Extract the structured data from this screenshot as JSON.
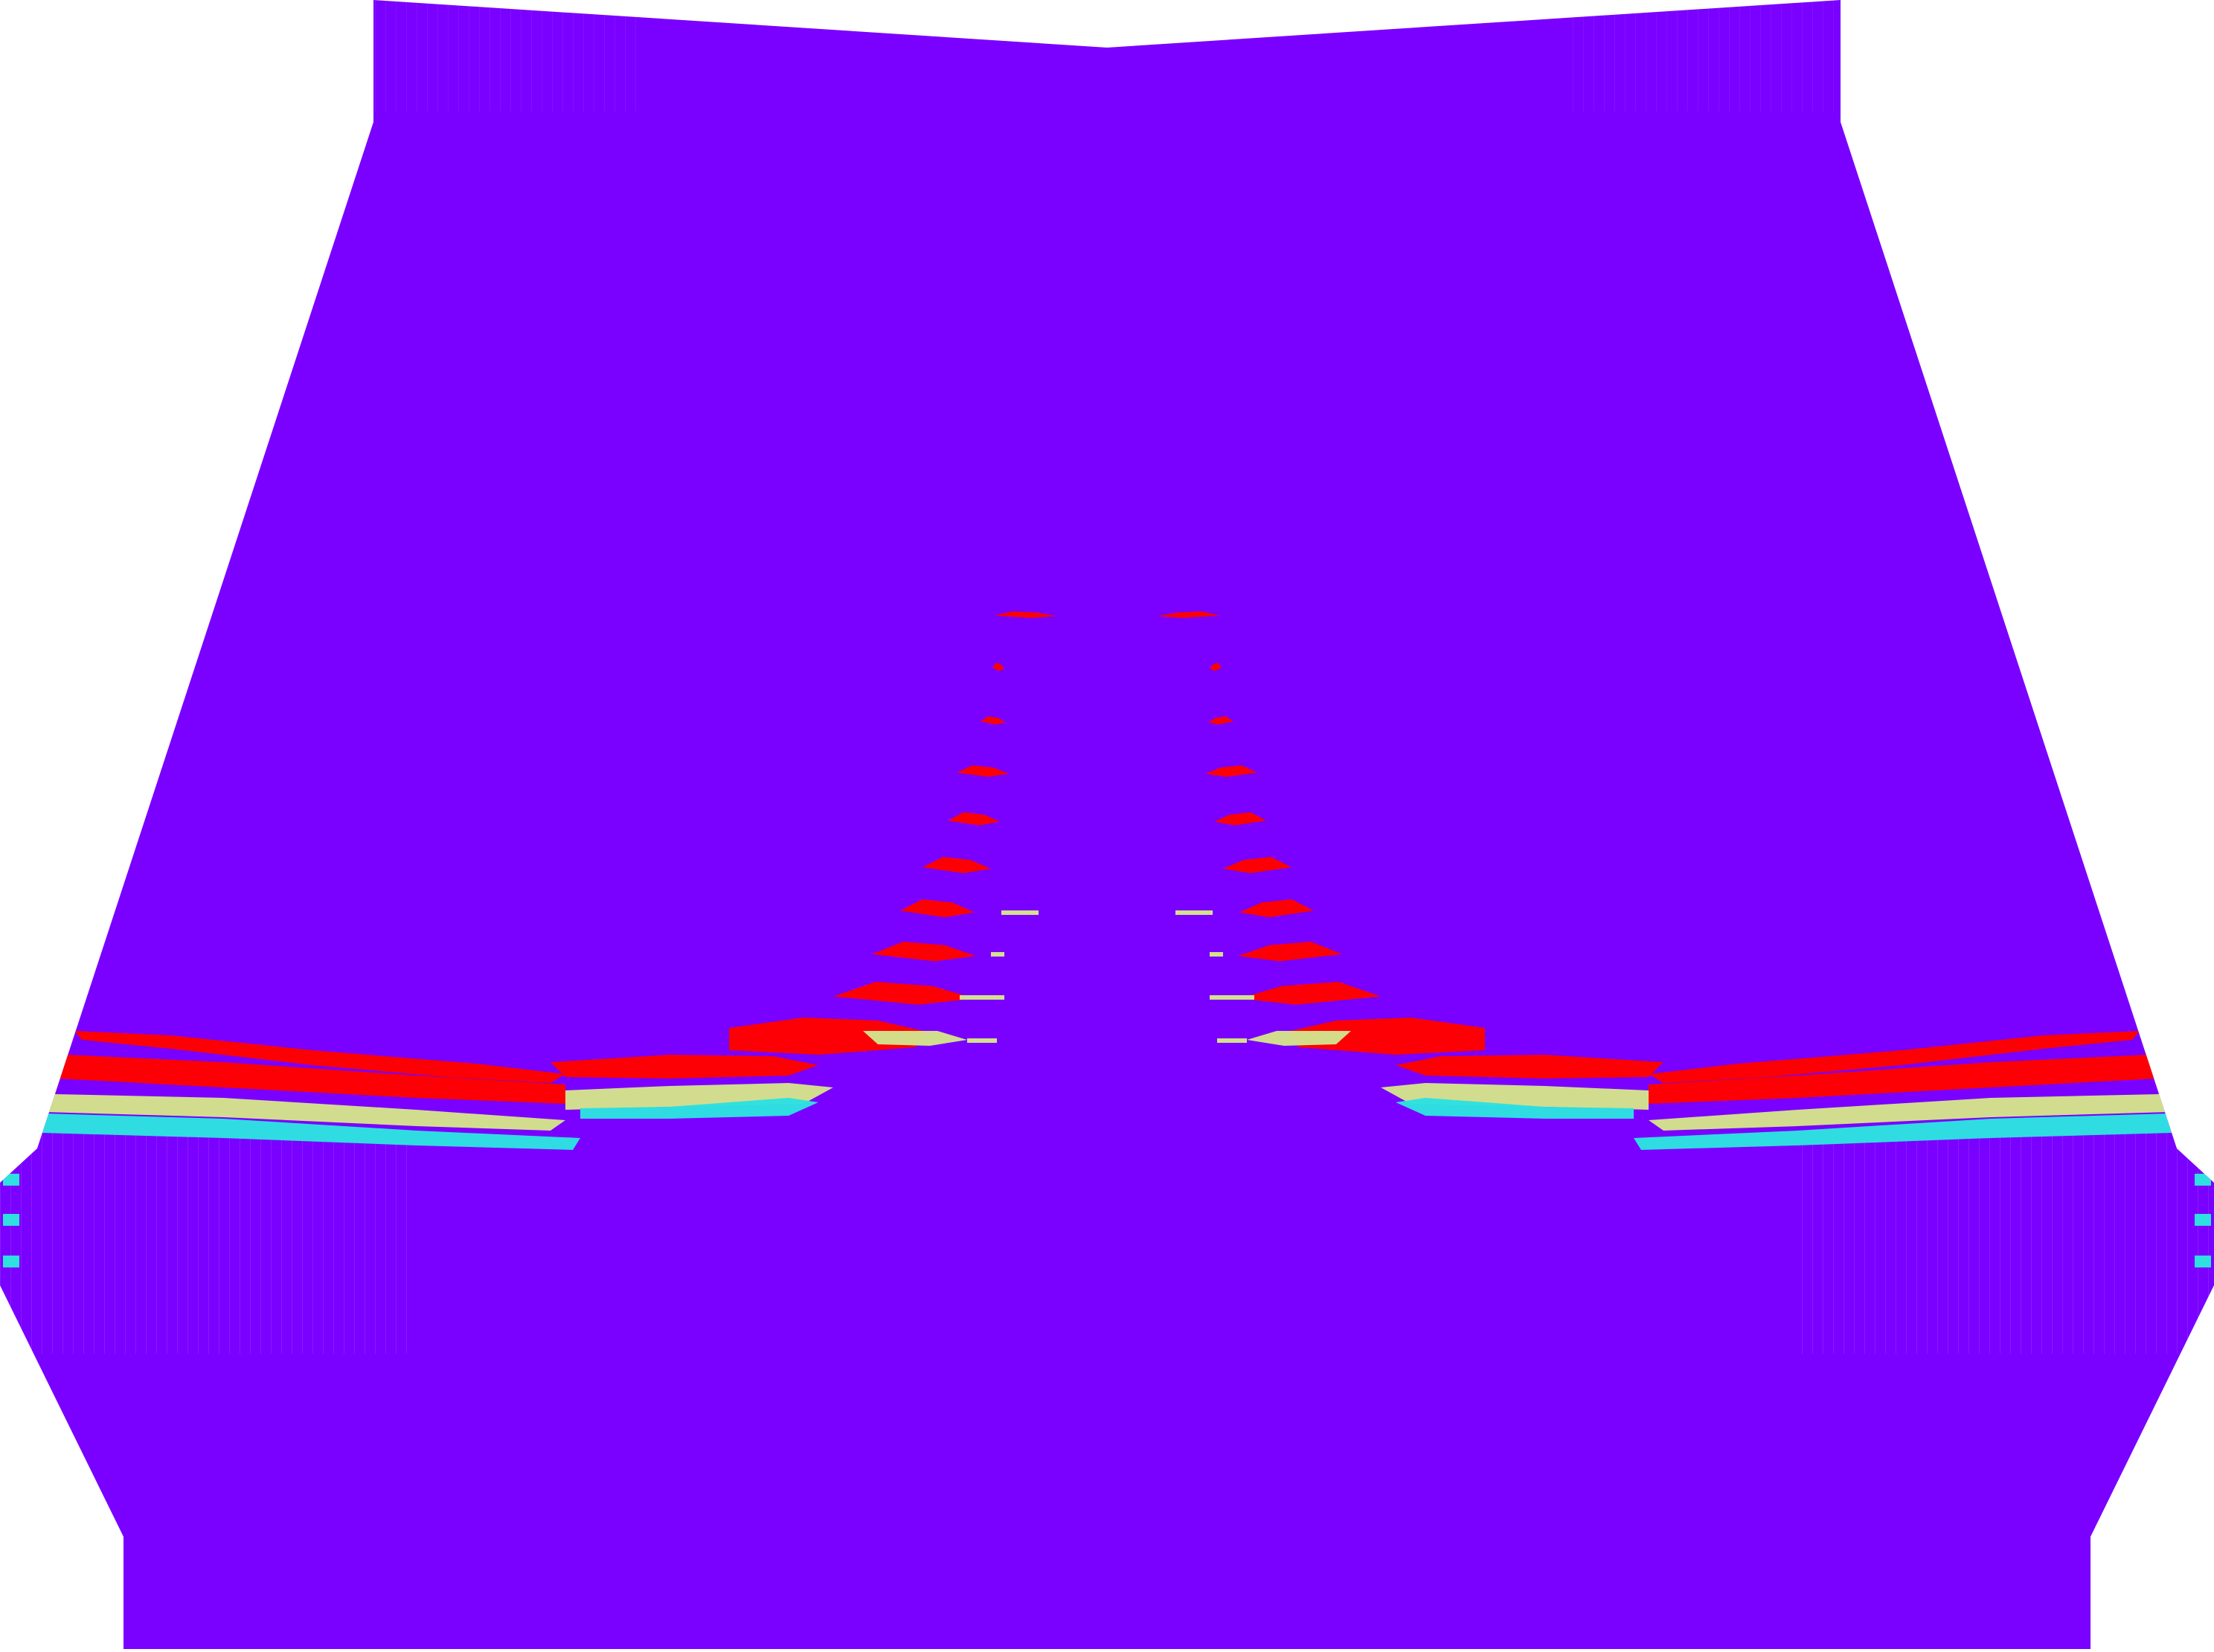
{
  "scene": {
    "kind": "symmetric contour field",
    "text_labels": [],
    "palette": {
      "background": "#ffffff",
      "field": "#7a00ff",
      "field_mesh": "#9a55ff",
      "level_high": "#ff0000",
      "level_mid": "#d4e08c",
      "level_low": "#2ee0e0"
    },
    "bands": {
      "left": {
        "wing_colors": [
          "level_high",
          "level_high",
          "level_mid",
          "level_low"
        ],
        "channel_levels": [
          "level_high",
          "level_high",
          "level_high",
          "level_high",
          "level_high",
          "level_high",
          "level_high",
          "level_high",
          "level_high",
          "level_high"
        ],
        "edge_marks": [
          "level_low",
          "level_low",
          "level_low",
          "level_low"
        ]
      },
      "right": {
        "wing_colors": [
          "level_high",
          "level_high",
          "level_mid",
          "level_low"
        ],
        "channel_levels": [
          "level_high",
          "level_high",
          "level_high",
          "level_high",
          "level_high",
          "level_high",
          "level_high",
          "level_high",
          "level_high",
          "level_high"
        ],
        "edge_marks": [
          "level_low",
          "level_low",
          "level_low",
          "level_low"
        ]
      }
    }
  }
}
